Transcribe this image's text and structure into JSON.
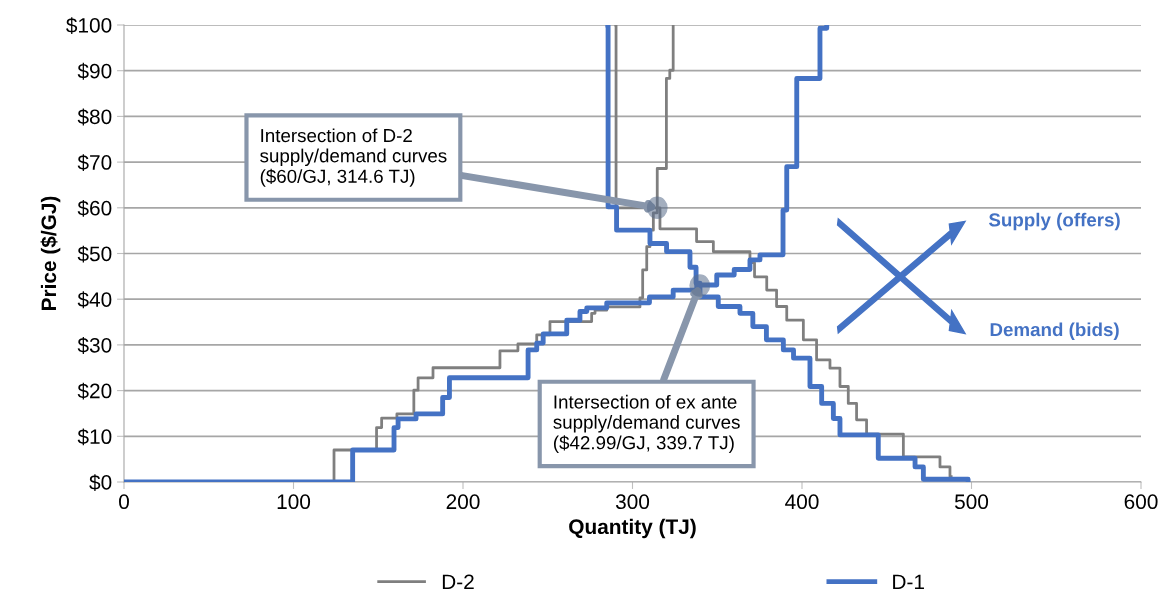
{
  "chart_data": {
    "type": "step",
    "xlabel": "Quantity (TJ)",
    "ylabel": "Price ($/GJ)",
    "xlim": [
      0,
      600
    ],
    "xticks": [
      0,
      100,
      200,
      300,
      400,
      500,
      600
    ],
    "ylim": [
      0,
      100
    ],
    "yticks": [
      {
        "value": 0,
        "label": "$0"
      },
      {
        "value": 10,
        "label": "$10"
      },
      {
        "value": 20,
        "label": "$20"
      },
      {
        "value": 30,
        "label": "$30"
      },
      {
        "value": 40,
        "label": "$40"
      },
      {
        "value": 50,
        "label": "$50"
      },
      {
        "value": 60,
        "label": "$60"
      },
      {
        "value": 70,
        "label": "$70"
      },
      {
        "value": 80,
        "label": "$80"
      },
      {
        "value": 90,
        "label": "$90"
      },
      {
        "value": 100,
        "label": "$100"
      }
    ],
    "grid": "y",
    "legend": "bottom",
    "series": [
      {
        "name": "D-2",
        "color": "#7f7f7f",
        "x": [
          0,
          123.9,
          149,
          152,
          161,
          171,
          173.5,
          182.3,
          221.8,
          232.4,
          243.5,
          251.3,
          275.9,
          277.9,
          284.8,
          304.4,
          306,
          308.4,
          310.3,
          312.3,
          314.6,
          320,
          322,
          324
        ],
        "values": [
          0,
          7.0,
          11.9,
          14.0,
          14.9,
          20.1,
          22.8,
          25.0,
          28.7,
          30.2,
          32.2,
          35.1,
          36.9,
          37.6,
          38.3,
          40.3,
          46.4,
          51.5,
          55.1,
          58.9,
          68.6,
          88.3,
          90.1,
          100
        ]
      },
      {
        "color": "#7f7f7f",
        "x": [
          290.1,
          290.3,
          316.2,
          337.8,
          347.7,
          369.3,
          372,
          379.2,
          385,
          391,
          400.8,
          408.6,
          416.5,
          422.4,
          427.3,
          432.2,
          438.1,
          459.8,
          481.4,
          487.3,
          488
        ],
        "values": [
          100,
          60,
          55.4,
          52.6,
          50.4,
          48,
          44.9,
          42.0,
          38.4,
          35.4,
          31.1,
          26.7,
          24.9,
          20.9,
          17.2,
          13.6,
          10.5,
          5.5,
          3.3,
          1.2,
          1.2
        ]
      },
      {
        "name": "D-1",
        "color": "#4472c4",
        "x": [
          0,
          134.9,
          159.3,
          161.7,
          172.3,
          188,
          192,
          238.4,
          243.5,
          247.3,
          261.2,
          269,
          273,
          284.8,
          310,
          324,
          337.9,
          349.7,
          360,
          369.3,
          375.2,
          388.8,
          391,
          396.9,
          410.6,
          414.6
        ],
        "values": [
          0,
          7.0,
          11.9,
          13.8,
          14.9,
          18.5,
          22.8,
          28.9,
          30.4,
          32.4,
          35.4,
          37.3,
          38.1,
          39.2,
          40.5,
          42.0,
          43.1,
          45.3,
          46.5,
          48.6,
          49.7,
          59.5,
          69,
          88.3,
          99.3,
          100
        ]
      },
      {
        "color": "#4472c4",
        "x": [
          285.4,
          285.6,
          290.6,
          310.3,
          320.1,
          333.9,
          337.5,
          339.8,
          350.6,
          363.4,
          371,
          379,
          389,
          395,
          404.7,
          411.6,
          418.5,
          422.4,
          445,
          466.7,
          471.6,
          498
        ],
        "values": [
          100,
          60.2,
          55.1,
          52.2,
          50.4,
          47,
          43.5,
          40.5,
          38.4,
          36.9,
          34.0,
          31.1,
          28.9,
          27.1,
          20.9,
          17.2,
          13.9,
          10.3,
          5.2,
          3.3,
          0.6,
          0
        ]
      }
    ],
    "annotations": [
      {
        "text": "Intersection of D-2\nsupply/demand curves\n($60/GJ, 314.6 TJ)",
        "x": 314.6,
        "y": 60
      },
      {
        "text": "Intersection of ex ante\nsupply/demand curves\n($42.99/GJ, 339.7 TJ)",
        "x": 339.7,
        "y": 42.99
      },
      "Supply (offers)",
      "Demand (bids)"
    ]
  }
}
